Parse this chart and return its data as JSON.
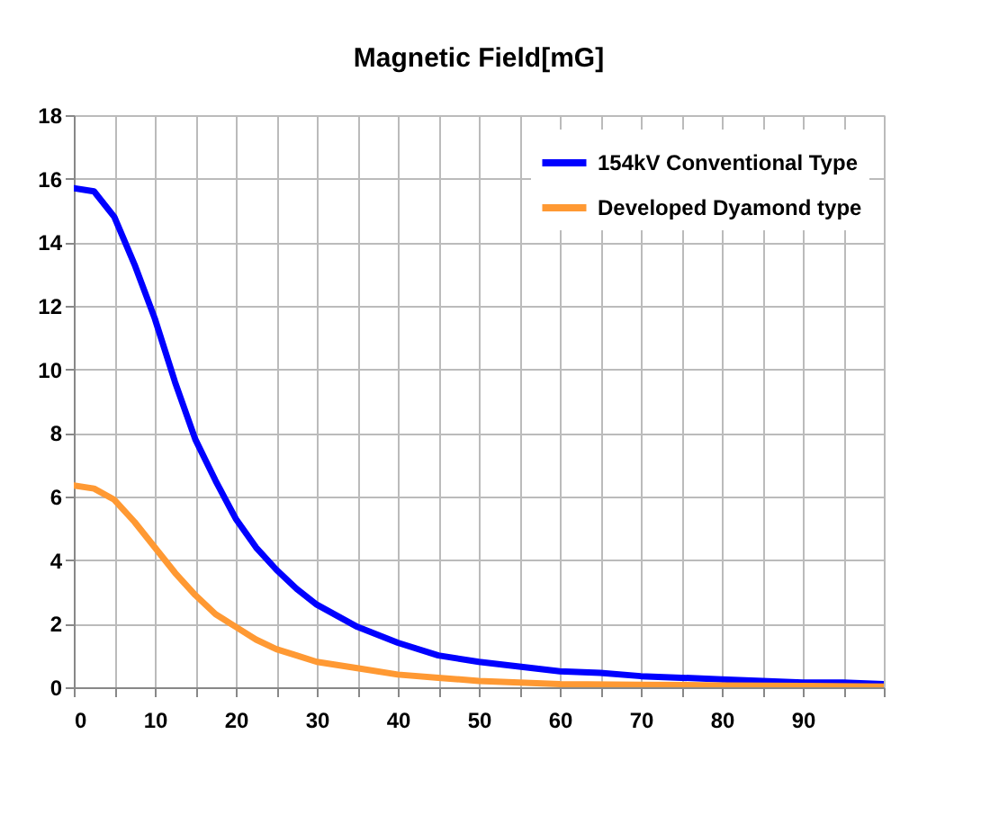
{
  "chart_data": {
    "type": "line",
    "title": "Magnetic Field[mG]",
    "xlim": [
      0,
      100
    ],
    "xticks": [
      0,
      {
        "value": 5,
        "label": null
      },
      10,
      {
        "value": 15,
        "label": null
      },
      20,
      {
        "value": 25,
        "label": null
      },
      30,
      {
        "value": 35,
        "label": null
      },
      40,
      {
        "value": 45,
        "label": null
      },
      50,
      {
        "value": 55,
        "label": null
      },
      60,
      {
        "value": 65,
        "label": null
      },
      70,
      {
        "value": 75,
        "label": null
      },
      80,
      {
        "value": 85,
        "label": null
      },
      90,
      {
        "value": 95,
        "label": null
      },
      {
        "value": 100,
        "label": null
      }
    ],
    "ylim": [
      0,
      18
    ],
    "yticks": [
      0,
      2,
      4,
      6,
      8,
      10,
      12,
      14,
      16,
      18
    ],
    "grid": true,
    "legend": "top right",
    "marker": "none",
    "line_style": "solid",
    "series": [
      {
        "name": "154kV Conventional Type",
        "color": "#0000ff",
        "x": [
          0,
          2.5,
          5,
          7.5,
          10,
          12.5,
          15,
          17.5,
          20,
          22.5,
          25,
          27.5,
          30,
          35,
          40,
          45,
          50,
          55,
          60,
          65,
          70,
          75,
          80,
          85,
          90,
          95,
          100
        ],
        "values": [
          15.7,
          15.6,
          14.8,
          13.3,
          11.6,
          9.6,
          7.8,
          6.5,
          5.3,
          4.4,
          3.7,
          3.1,
          2.6,
          1.9,
          1.4,
          1.0,
          0.8,
          0.65,
          0.5,
          0.45,
          0.35,
          0.3,
          0.25,
          0.2,
          0.15,
          0.15,
          0.1
        ]
      },
      {
        "name": "Developed Dyamond type",
        "color": "#ff9933",
        "x": [
          0,
          2.5,
          5,
          7.5,
          10,
          12.5,
          15,
          17.5,
          20,
          22.5,
          25,
          27.5,
          30,
          35,
          40,
          45,
          50,
          55,
          60,
          70,
          80,
          90,
          100
        ],
        "values": [
          6.35,
          6.25,
          5.9,
          5.2,
          4.4,
          3.6,
          2.9,
          2.3,
          1.9,
          1.5,
          1.2,
          1.0,
          0.8,
          0.6,
          0.4,
          0.3,
          0.2,
          0.15,
          0.1,
          0.08,
          0.06,
          0.04,
          0.02
        ]
      }
    ]
  }
}
